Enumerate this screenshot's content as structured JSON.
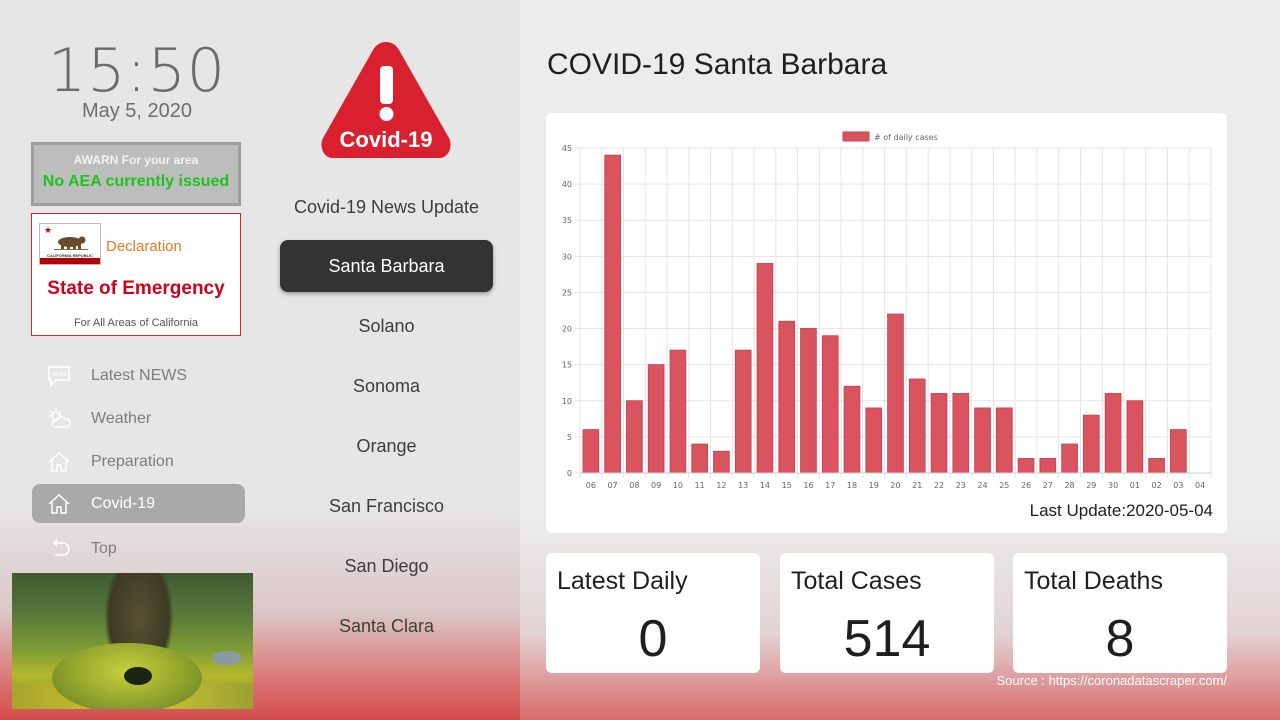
{
  "clock": {
    "time": "15:50",
    "date": "May 5, 2020"
  },
  "awarn": {
    "heading": "AWARN For your area",
    "status": "No AEA currently issued"
  },
  "declaration": {
    "flag_text": "CALIFORNIA REPUBLIC",
    "title": "Declaration",
    "state": "State of Emergency",
    "subtitle": "For All Areas of California"
  },
  "nav": {
    "items": [
      {
        "label": "Latest NEWS",
        "icon": "news-icon"
      },
      {
        "label": "Weather",
        "icon": "weather-icon"
      },
      {
        "label": "Preparation",
        "icon": "home-icon"
      },
      {
        "label": "Covid-19",
        "icon": "home-icon",
        "active": true
      },
      {
        "label": "Top",
        "icon": "back-icon"
      }
    ]
  },
  "logo": {
    "text": "Covid-19"
  },
  "cities": {
    "heading": "Covid-19 News Update",
    "items": [
      "Santa Barbara",
      "Solano",
      "Sonoma",
      "Orange",
      "San Francisco",
      "San Diego",
      "Santa Clara"
    ],
    "active": "Santa Barbara"
  },
  "main": {
    "title": "COVID-19 Santa Barbara",
    "last_update": "Last Update:2020-05-04",
    "stats": [
      {
        "label": "Latest Daily",
        "value": "0"
      },
      {
        "label": "Total Cases",
        "value": "514"
      },
      {
        "label": "Total Deaths",
        "value": "8"
      }
    ],
    "source": "Source : https://coronadatascraper.com/"
  },
  "colors": {
    "accent": "#d0021b",
    "bar": "#d9545f",
    "active_city": "#333333",
    "awarn_green": "#1ec21e"
  },
  "chart_data": {
    "type": "bar",
    "categories": [
      "06",
      "07",
      "08",
      "09",
      "10",
      "11",
      "12",
      "13",
      "14",
      "15",
      "16",
      "17",
      "18",
      "19",
      "20",
      "21",
      "22",
      "23",
      "24",
      "25",
      "26",
      "27",
      "28",
      "29",
      "30",
      "01",
      "02",
      "03",
      "04"
    ],
    "series": [
      {
        "name": "# of daily cases",
        "values": [
          6,
          44,
          10,
          15,
          17,
          4,
          3,
          17,
          29,
          21,
          20,
          19,
          12,
          9,
          22,
          13,
          11,
          11,
          9,
          9,
          2,
          2,
          4,
          8,
          11,
          10,
          2,
          6,
          0
        ]
      }
    ],
    "yticks": [
      0,
      5,
      10,
      15,
      20,
      25,
      30,
      35,
      40,
      45
    ],
    "ylim": [
      0,
      45
    ],
    "grid": true,
    "legend": "top-center"
  }
}
